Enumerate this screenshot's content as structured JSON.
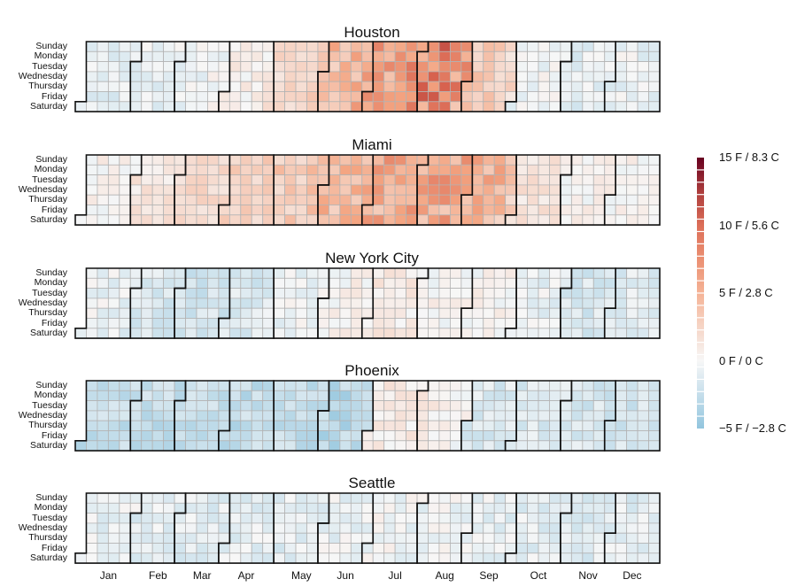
{
  "chart_data": {
    "type": "heatmap",
    "year_start_weekday": "Saturday",
    "days": [
      "Sunday",
      "Monday",
      "Tuesday",
      "Wednesday",
      "Thursday",
      "Friday",
      "Saturday"
    ],
    "months": [
      "Jan",
      "Feb",
      "Mar",
      "Apr",
      "May",
      "Jun",
      "Jul",
      "Aug",
      "Sep",
      "Oct",
      "Nov",
      "Dec"
    ],
    "legend": {
      "min": -5,
      "max": 15,
      "labels": [
        "15 F / 8.3 C",
        "10 F / 5.6 C",
        "5 F / 2.8 C",
        "0 F / 0 C",
        "−5 F / −2.8 C"
      ],
      "values": [
        15,
        10,
        5,
        0,
        -5
      ],
      "colors": {
        "cold": "#92c5de",
        "neutral": "#f7f7f7",
        "warm": "#d6604d",
        "hot": "#67001f"
      }
    },
    "panels": [
      {
        "city": "Houston",
        "monthly_mean_deviation_F": [
          -1.0,
          -0.8,
          -0.3,
          0.5,
          2.2,
          4.6,
          6.5,
          8.0,
          3.2,
          -0.3,
          -0.9,
          -0.6
        ]
      },
      {
        "city": "Miami",
        "monthly_mean_deviation_F": [
          0.4,
          1.2,
          2.0,
          2.6,
          3.3,
          4.6,
          5.5,
          5.7,
          4.8,
          1.4,
          0.3,
          0.4
        ]
      },
      {
        "city": "New York City",
        "monthly_mean_deviation_F": [
          -0.5,
          -1.3,
          -1.8,
          -1.5,
          -0.4,
          0.3,
          0.9,
          0.2,
          0.3,
          -0.6,
          -1.5,
          -1.2
        ]
      },
      {
        "city": "Phoenix",
        "monthly_mean_deviation_F": [
          -2.5,
          -2.5,
          -2.3,
          -2.6,
          -2.4,
          -3.0,
          0.8,
          0.6,
          -1.4,
          -1.2,
          -1.6,
          -1.8
        ]
      },
      {
        "city": "Seattle",
        "monthly_mean_deviation_F": [
          -0.6,
          -0.9,
          -1.0,
          -0.8,
          -1.0,
          -0.6,
          -0.2,
          -0.4,
          -0.7,
          -0.9,
          -1.1,
          -1.0
        ]
      }
    ]
  }
}
